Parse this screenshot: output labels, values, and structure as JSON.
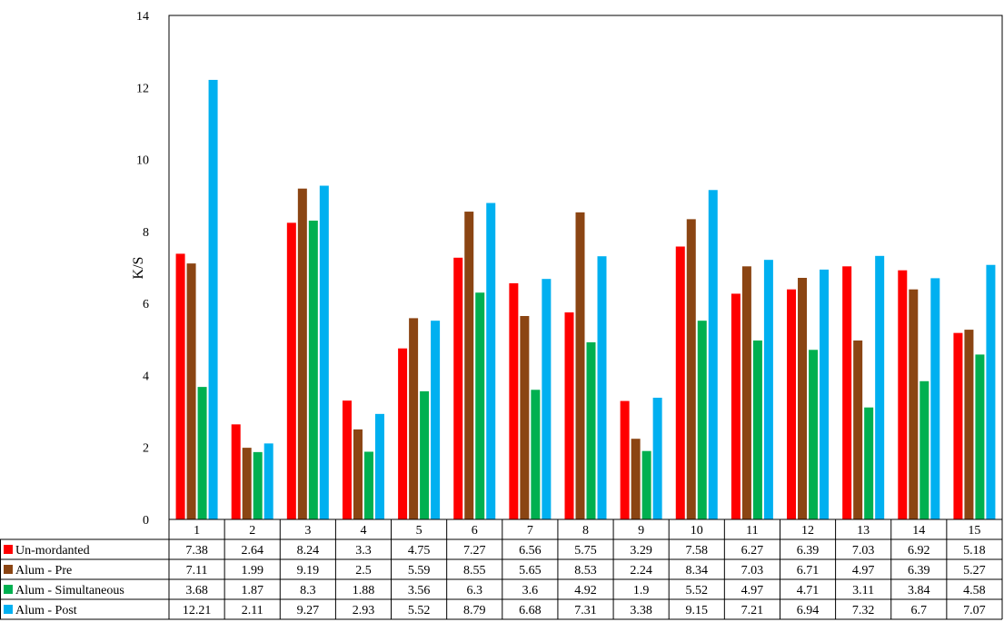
{
  "chart_data": {
    "type": "bar",
    "title": "",
    "xlabel": "",
    "ylabel": "K/S",
    "ylim": [
      0,
      14
    ],
    "yticks": [
      0,
      2,
      4,
      6,
      8,
      10,
      12,
      14
    ],
    "grid": false,
    "legend": "data-table-below",
    "categories": [
      "1",
      "2",
      "3",
      "4",
      "5",
      "6",
      "7",
      "8",
      "9",
      "10",
      "11",
      "12",
      "13",
      "14",
      "15"
    ],
    "series": [
      {
        "name": "Un-mordanted",
        "color": "#ff0000",
        "values": [
          7.38,
          2.64,
          8.24,
          3.3,
          4.75,
          7.27,
          6.56,
          5.75,
          3.29,
          7.58,
          6.27,
          6.39,
          7.03,
          6.92,
          5.18
        ]
      },
      {
        "name": "Alum - Pre",
        "color": "#8b4513",
        "values": [
          7.11,
          1.99,
          9.19,
          2.5,
          5.59,
          8.55,
          5.65,
          8.53,
          2.24,
          8.34,
          7.03,
          6.71,
          4.97,
          6.39,
          5.27
        ]
      },
      {
        "name": "Alum - Simultaneous",
        "color": "#00b050",
        "values": [
          3.68,
          1.87,
          8.3,
          1.88,
          3.56,
          6.3,
          3.6,
          4.92,
          1.9,
          5.52,
          4.97,
          4.71,
          3.11,
          3.84,
          4.58
        ]
      },
      {
        "name": "Alum - Post",
        "color": "#00b0f0",
        "values": [
          12.21,
          2.11,
          9.27,
          2.93,
          5.52,
          8.79,
          6.68,
          7.31,
          3.38,
          9.15,
          7.21,
          6.94,
          7.32,
          6.7,
          7.07
        ]
      }
    ]
  }
}
